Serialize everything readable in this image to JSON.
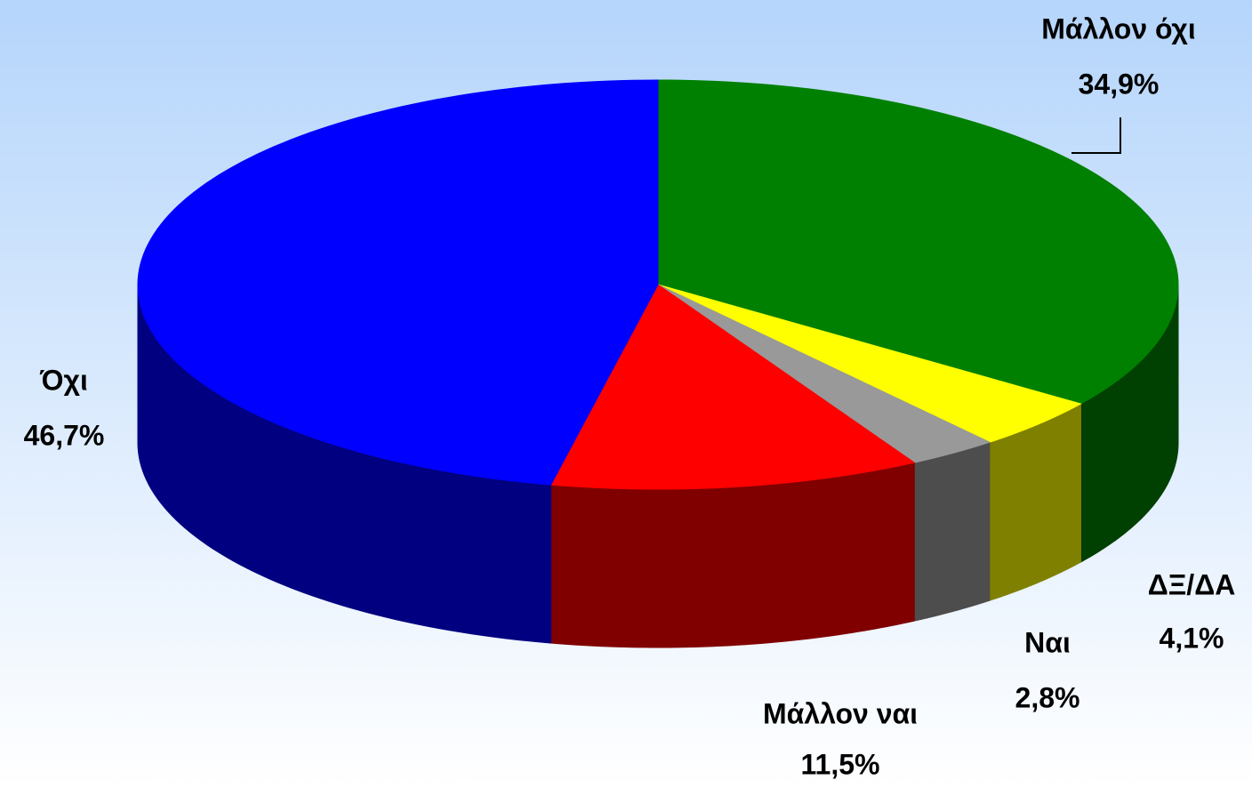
{
  "chart_data": {
    "type": "pie",
    "categories": [
      "Μάλλον όχι",
      "ΔΞ/ΔΑ",
      "Ναι",
      "Μάλλον ναι",
      "Όχι"
    ],
    "values": [
      34.9,
      4.1,
      2.8,
      11.5,
      46.7
    ],
    "value_labels": [
      "34,9%",
      "4,1%",
      "2,8%",
      "11,5%",
      "46,7%"
    ],
    "colors": [
      "#008000",
      "#ffff00",
      "#999999",
      "#ff0000",
      "#0000ff"
    ]
  }
}
